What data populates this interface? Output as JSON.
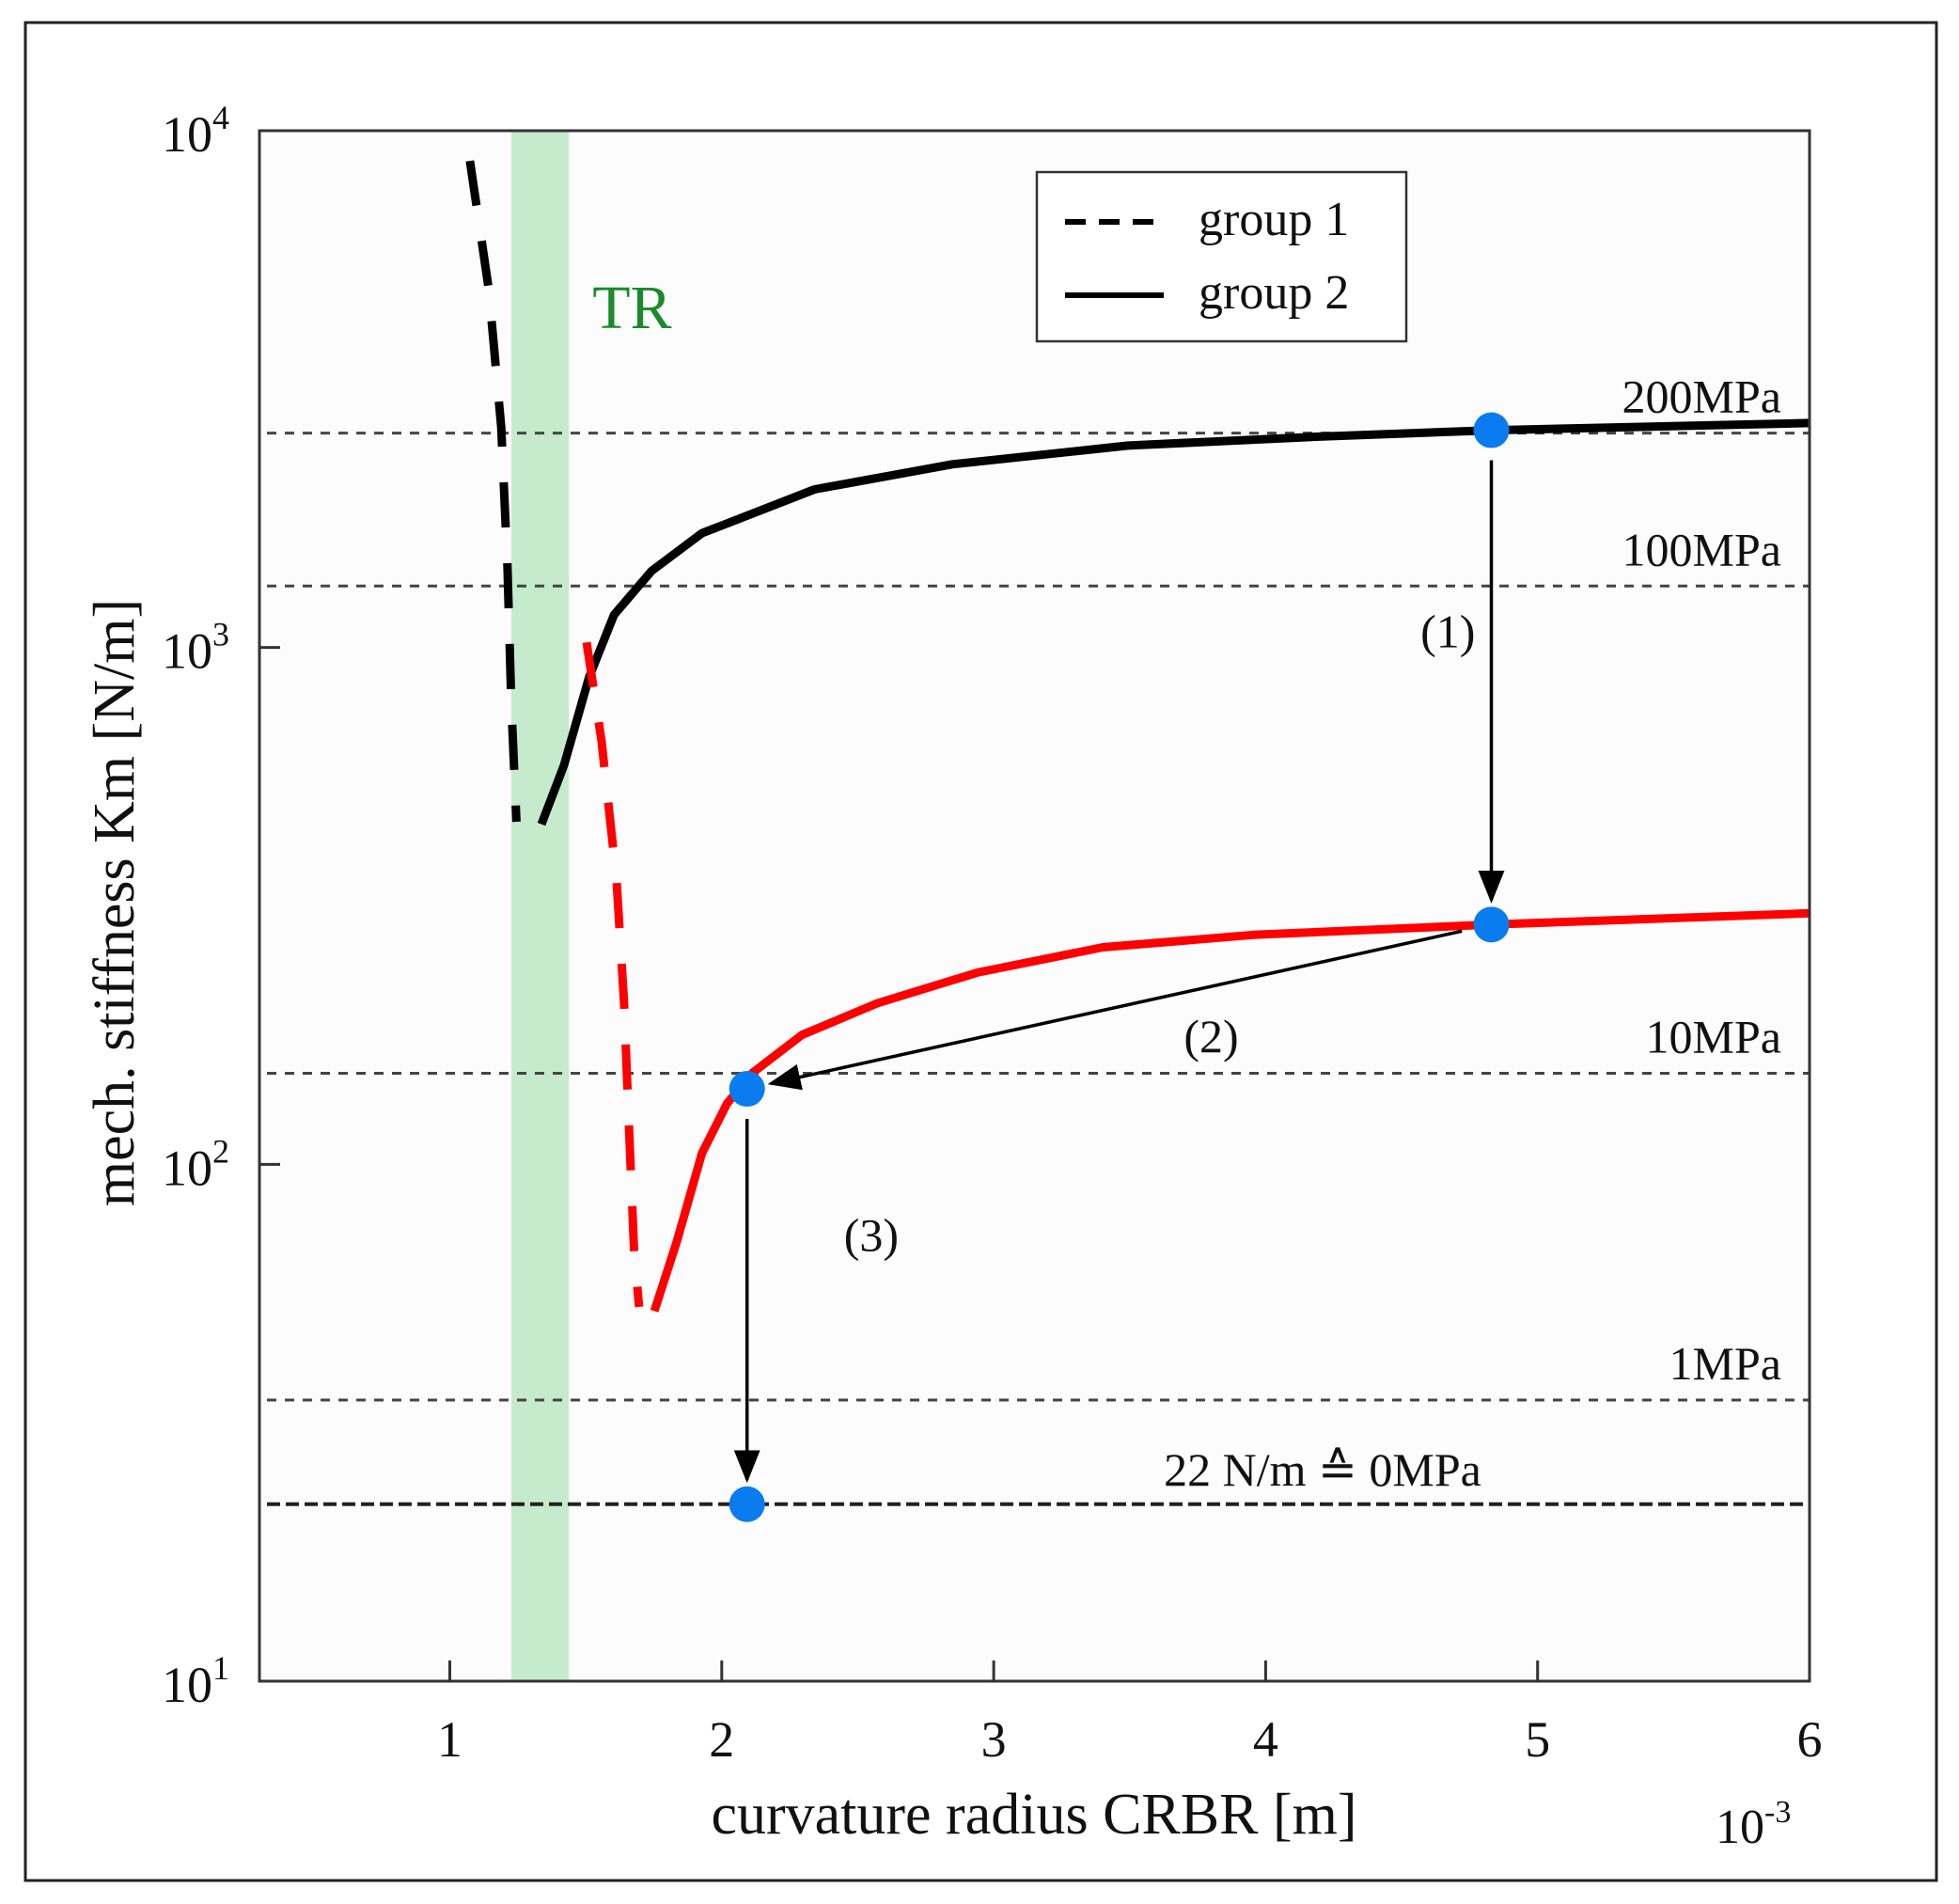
{
  "chart_data": {
    "type": "line",
    "xlabel": "curvature radius CRBR [m]",
    "x_multiplier": {
      "base": "10",
      "exp": "-3"
    },
    "ylabel": "mech. stiffness Km [N/m]",
    "yscale": "log",
    "xlim": [
      0.3,
      6
    ],
    "ylim": [
      10,
      10000
    ],
    "x_ticks": [
      "1",
      "2",
      "3",
      "4",
      "5",
      "6"
    ],
    "y_ticks": [
      {
        "base": "10",
        "exp": "4",
        "value": 10000
      },
      {
        "base": "10",
        "exp": "3",
        "value": 1000
      },
      {
        "base": "10",
        "exp": "2",
        "value": 100
      },
      {
        "base": "10",
        "exp": "1",
        "value": 10
      }
    ],
    "grid": false,
    "legend": {
      "position": "top-right",
      "entries": [
        {
          "label": "group 1",
          "style": "dashed"
        },
        {
          "label": "group 2",
          "style": "solid"
        }
      ]
    },
    "shaded_region": {
      "label": "TR",
      "x": [
        1.226,
        1.438
      ],
      "color": "#c6ebcc",
      "label_color": "#1a8a2a"
    },
    "reference_lines": [
      {
        "label": "200MPa",
        "y": 2600
      },
      {
        "label": "100MPa",
        "y": 1315
      },
      {
        "label": "10MPa",
        "y": 150
      },
      {
        "label": "1MPa",
        "y": 35
      },
      {
        "label": "22 N/m ≙ 0MPa",
        "y": 22,
        "strong": true
      }
    ],
    "series": [
      {
        "name": "black group 1",
        "group": "group 1",
        "color": "#000000",
        "dashed": true,
        "x": [
          1.074,
          1.143,
          1.189,
          1.212,
          1.226,
          1.245
        ],
        "y": [
          8740,
          4940,
          2670,
          1445,
          782,
          460
        ]
      },
      {
        "name": "black group 2",
        "group": "group 2",
        "color": "#000000",
        "dashed": false,
        "x": [
          1.337,
          1.42,
          1.512,
          1.604,
          1.742,
          1.927,
          2.341,
          2.848,
          3.494,
          4.185,
          4.83,
          6.0
        ],
        "y": [
          455,
          592,
          875,
          1157,
          1407,
          1664,
          2023,
          2262,
          2459,
          2558,
          2633,
          2719
        ]
      },
      {
        "name": "red group 1",
        "group": "group 1",
        "color": "#ff0000",
        "dashed": true,
        "x": [
          1.503,
          1.558,
          1.613,
          1.641,
          1.659,
          1.678,
          1.696
        ],
        "y": [
          1023,
          660,
          357,
          205,
          117,
          67,
          53
        ]
      },
      {
        "name": "red group 2",
        "group": "group 2",
        "color": "#ff0000",
        "dashed": false,
        "x": [
          1.752,
          1.835,
          1.927,
          2.019,
          2.111,
          2.295,
          2.572,
          2.94,
          3.401,
          3.954,
          4.83,
          6.0
        ],
        "y": [
          52,
          71,
          105,
          131,
          150,
          178,
          205,
          235,
          263,
          278,
          291,
          306
        ]
      }
    ],
    "points": [
      {
        "x": 4.83,
        "y": 2633
      },
      {
        "x": 4.83,
        "y": 291
      },
      {
        "x": 2.093,
        "y": 140
      },
      {
        "x": 2.093,
        "y": 22
      }
    ],
    "point_color": "#0a7cf0",
    "arrows": [
      {
        "label": "(1)",
        "from": 0,
        "to": 1,
        "label_x": 4.67,
        "label_y": 1000
      },
      {
        "label": "(2)",
        "from": 1,
        "to": 2,
        "label_x": 3.8,
        "label_y": 165
      },
      {
        "label": "(3)",
        "from": 2,
        "to": 3,
        "label_x": 2.55,
        "label_y": 68
      }
    ]
  }
}
